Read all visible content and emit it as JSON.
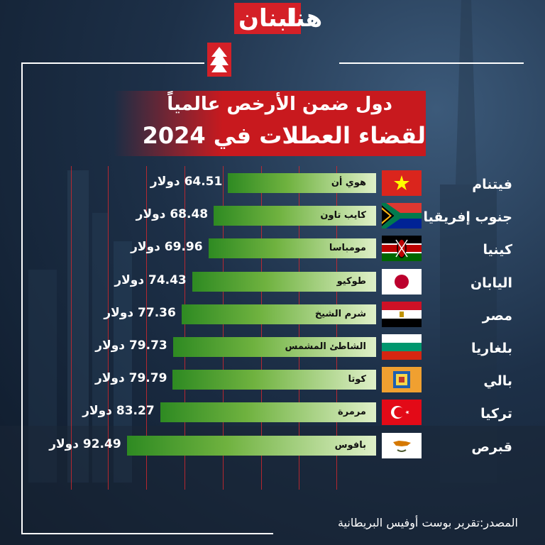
{
  "brand": {
    "hena": "هنا",
    "lebnan": "لبنان"
  },
  "chart_data": {
    "type": "bar",
    "title": "دول ضمن الأرخص عالمياً",
    "subtitle": "لقضاء العطلات في 2024",
    "unit": "دولار",
    "categories": [
      "فيتنام",
      "جنوب إفريقيا",
      "كينيا",
      "اليابان",
      "مصر",
      "بلغاريا",
      "بالي",
      "تركيا",
      "قبرص"
    ],
    "cities": [
      "هوي أن",
      "كايب تاون",
      "مومباسا",
      "طوكيو",
      "شرم الشيخ",
      "الشاطئ المشمس",
      "كوتا",
      "مرمرة",
      "بافوس"
    ],
    "values": [
      64.51,
      68.48,
      69.96,
      74.43,
      77.36,
      79.73,
      79.79,
      83.27,
      92.49
    ],
    "value_labels": [
      "64.51 دولار",
      "68.48 دولار",
      "69.96 دولار",
      "74.43 دولار",
      "77.36 دولار",
      "79.73 دولار",
      "79.79 دولار",
      "83.27 دولار",
      "92.49 دولار"
    ],
    "flags": [
      "vietnam-flag-icon",
      "south-africa-flag-icon",
      "kenya-flag-icon",
      "japan-flag-icon",
      "egypt-flag-icon",
      "bulgaria-flag-icon",
      "bali-flag-icon",
      "turkey-flag-icon",
      "cyprus-flag-icon"
    ],
    "grid": true,
    "orientation": "horizontal-right-aligned"
  },
  "colors": {
    "accent_red": "#c8191e",
    "bar_green": "#4a9e2f",
    "bar_light": "#dff0c8"
  },
  "source": "المصدر:تقرير بوست أوفيس البريطانية"
}
